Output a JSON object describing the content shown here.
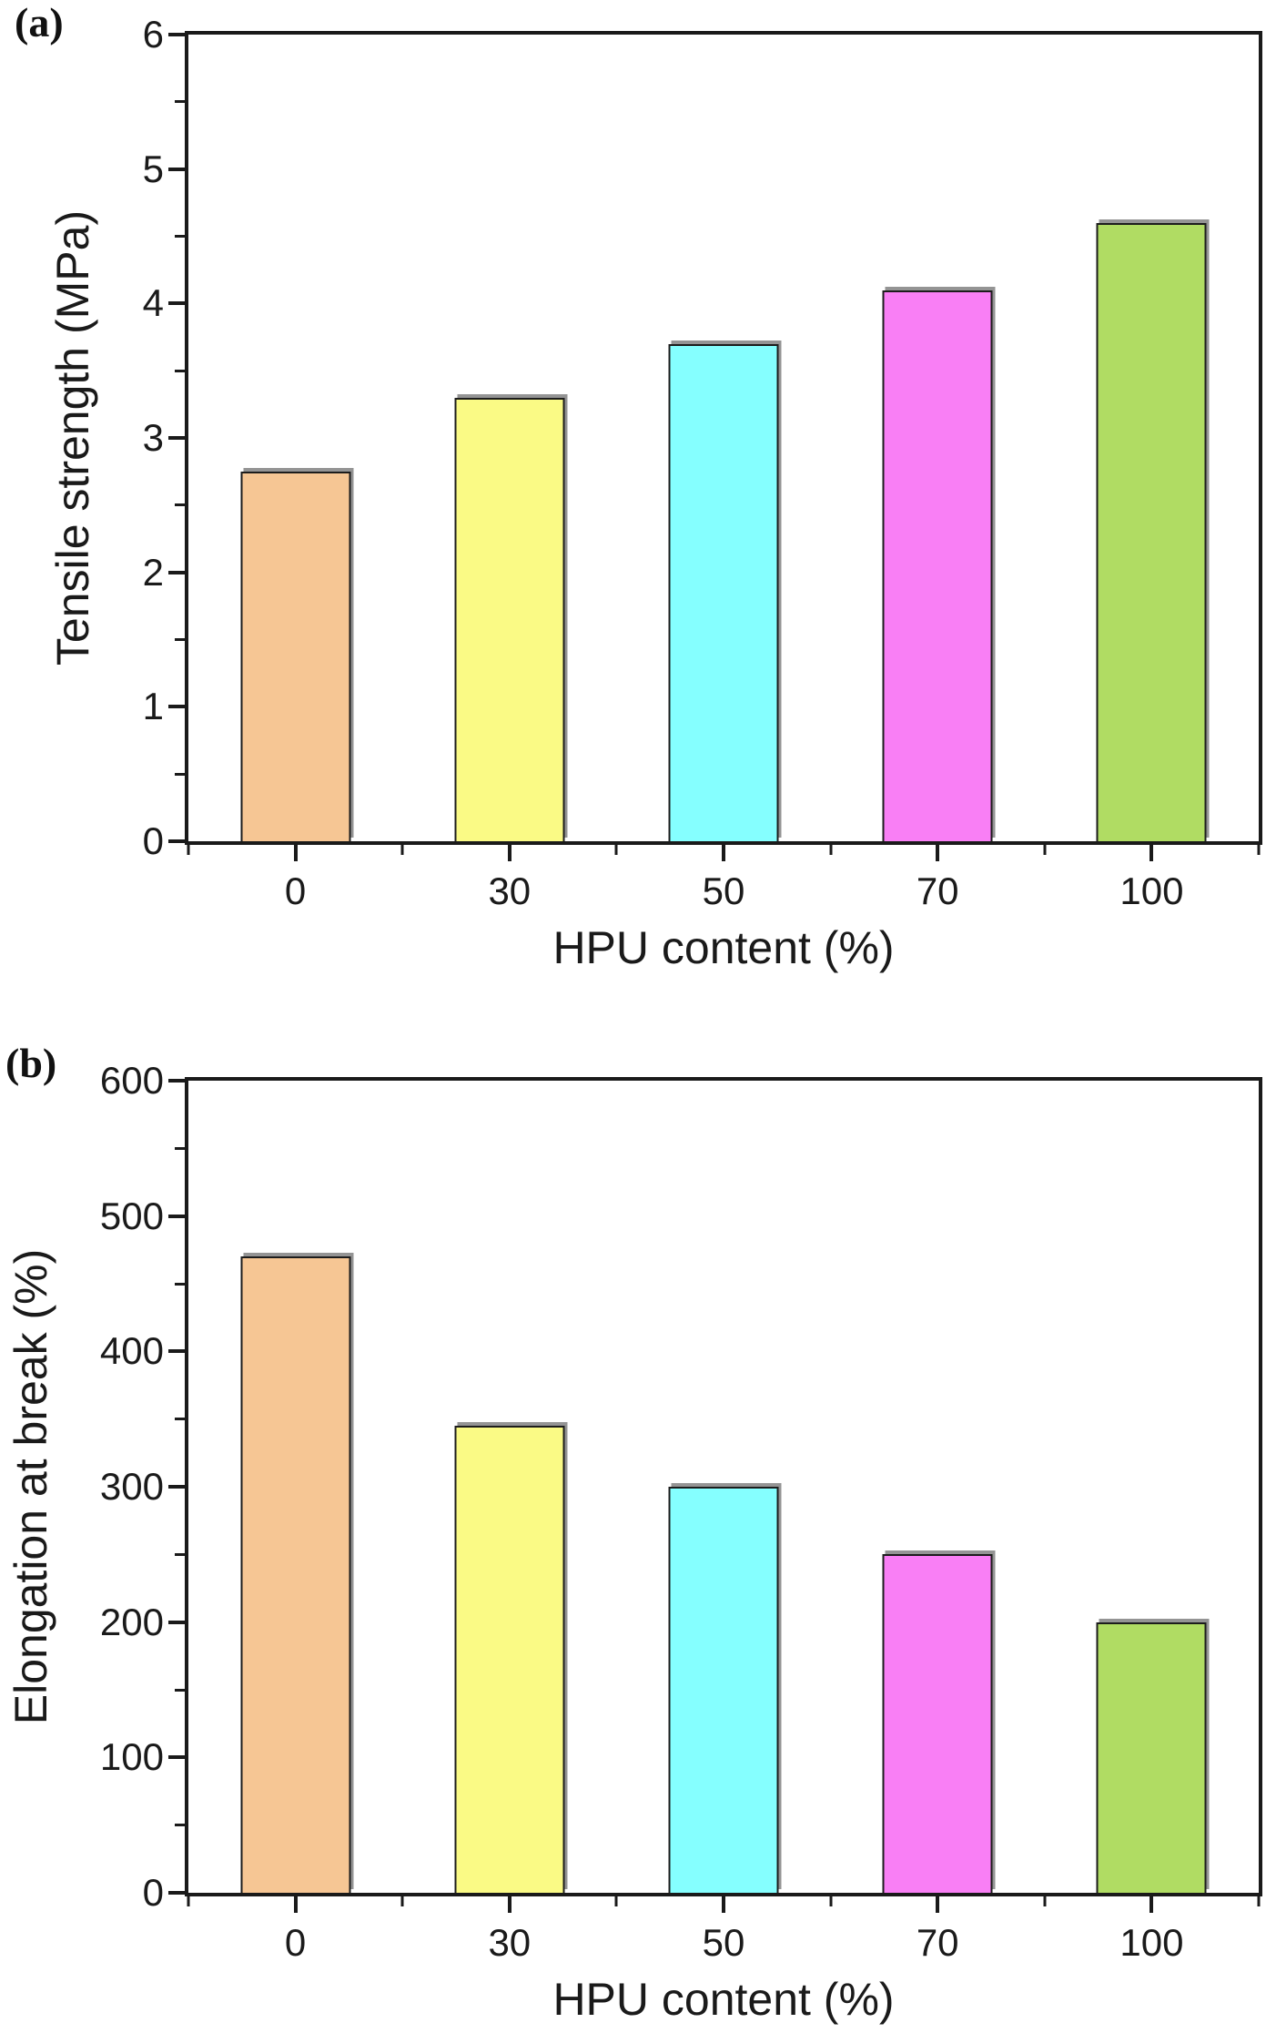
{
  "figure_background": "#ffffff",
  "bar_fill_colors": [
    "#F6C694",
    "#FAFA85",
    "#85FFFF",
    "#F97FF5",
    "#B0DC63"
  ],
  "bar_edge_color": "#1c1c1c",
  "bar_shadow_color": "#949494",
  "axis_color": "#1a1a1a",
  "text_color": "#1a1a1a",
  "chart_data": [
    {
      "type": "bar",
      "panel_label": "(a)",
      "title": "",
      "xlabel": "HPU content (%)",
      "ylabel": "Tensile strength (MPa)",
      "categories": [
        "0",
        "30",
        "50",
        "70",
        "100"
      ],
      "values": [
        2.75,
        3.3,
        3.7,
        4.1,
        4.6
      ],
      "ylim": [
        0,
        6
      ],
      "ytick_step": 1,
      "yminor_step": 0.5,
      "ytick_labels": [
        "0",
        "1",
        "2",
        "3",
        "4",
        "5",
        "6"
      ],
      "grid": false,
      "legend": "none"
    },
    {
      "type": "bar",
      "panel_label": "(b)",
      "title": "",
      "xlabel": "HPU content (%)",
      "ylabel": "Elongation at break (%)",
      "categories": [
        "0",
        "30",
        "50",
        "70",
        "100"
      ],
      "values": [
        470,
        345,
        300,
        250,
        200
      ],
      "ylim": [
        0,
        600
      ],
      "ytick_step": 100,
      "yminor_step": 50,
      "ytick_labels": [
        "0",
        "100",
        "200",
        "300",
        "400",
        "500",
        "600"
      ],
      "grid": false,
      "legend": "none"
    }
  ]
}
